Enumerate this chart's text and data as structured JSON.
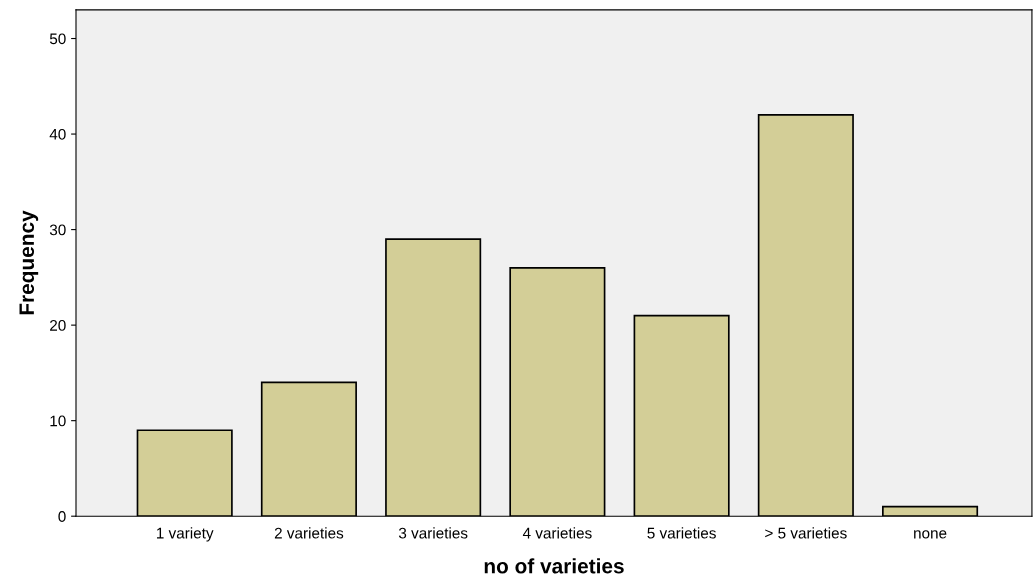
{
  "chart_data": {
    "type": "bar",
    "xlabel": "no of varieties",
    "ylabel": "Frequency",
    "categories": [
      "1 variety",
      "2 varieties",
      "3 varieties",
      "4 varieties",
      "5 varieties",
      "> 5 varieties",
      "none"
    ],
    "values": [
      9,
      14,
      29,
      26,
      21,
      42,
      1
    ],
    "color": "#d3ce97",
    "ylim": [
      0,
      53
    ],
    "yticks": [
      0,
      10,
      20,
      30,
      40,
      50
    ],
    "grid": false,
    "legend": false
  }
}
